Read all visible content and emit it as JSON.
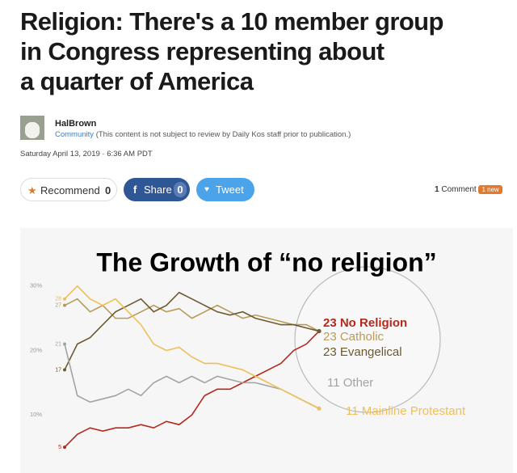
{
  "article": {
    "title_lines": [
      "Religion: There's a 10 member group",
      "in Congress representing about",
      "a quarter of America"
    ],
    "author": "HalBrown",
    "community": "Community",
    "disclaimer": "(This content is not subject to review by Daily Kos staff prior to publication.)",
    "date": "Saturday April 13, 2019 · 6:36 AM PDT",
    "recommend": {
      "label": "Recommend",
      "count": "0"
    },
    "share": {
      "icon": "f",
      "label": "Share",
      "count": "0"
    },
    "tweet": {
      "label": "Tweet"
    },
    "comments": {
      "count": "1",
      "label": "Comment",
      "badge": "1 new"
    }
  },
  "chart_data": {
    "type": "line",
    "title": "The Growth of “no religion”",
    "categories": [
      null,
      null,
      null,
      null,
      null,
      null,
      null,
      null,
      null,
      null,
      null,
      null,
      null,
      null,
      null,
      null,
      null,
      null,
      null,
      null,
      null
    ],
    "ylim": [
      1,
      39
    ],
    "yticks": [
      {
        "value": 10,
        "label": "10%"
      },
      {
        "value": 20,
        "label": "20%"
      },
      {
        "value": 30,
        "label": "30%"
      }
    ],
    "grid": false,
    "series": [
      {
        "name": "No Religion",
        "color": "#b5281c",
        "values": [
          5,
          7,
          8,
          7.5,
          8,
          8,
          8.5,
          8,
          9,
          8.5,
          10,
          13,
          14,
          14,
          15,
          16,
          17,
          18,
          20,
          21,
          23
        ],
        "value_labels": [
          "5",
          null,
          null,
          null,
          null,
          null,
          null,
          null,
          null,
          null,
          null,
          null,
          null,
          null,
          null,
          null,
          null,
          null,
          null,
          null,
          "23 No Religion"
        ]
      },
      {
        "name": "Catholic",
        "color": "#b89b5a",
        "values": [
          27,
          28,
          26,
          27,
          25,
          25,
          26,
          27,
          26,
          26.5,
          25,
          26,
          27,
          26,
          25,
          25.5,
          25,
          24.5,
          24,
          24,
          23
        ],
        "value_labels": [
          "27",
          null,
          null,
          null,
          null,
          null,
          null,
          null,
          null,
          null,
          null,
          null,
          null,
          null,
          null,
          null,
          null,
          null,
          null,
          null,
          "23 Catholic"
        ]
      },
      {
        "name": "Evangelical",
        "color": "#6b5a2e",
        "values": [
          17,
          21,
          22,
          24,
          26,
          27,
          28,
          26,
          27,
          29,
          28,
          27,
          26,
          25.5,
          26,
          25,
          24.5,
          24,
          24,
          23.5,
          23
        ],
        "value_labels": [
          "17",
          null,
          null,
          null,
          null,
          null,
          null,
          null,
          null,
          null,
          null,
          null,
          null,
          null,
          null,
          null,
          null,
          null,
          null,
          null,
          "23 Evangelical"
        ]
      },
      {
        "name": "Other",
        "color": "#a3a3a3",
        "values": [
          21,
          13,
          12,
          12.5,
          13,
          14,
          13,
          15,
          16,
          15,
          16,
          15,
          16,
          15.5,
          15,
          15,
          14.5,
          14,
          13,
          12,
          11
        ],
        "value_labels": [
          "21",
          null,
          null,
          null,
          null,
          null,
          null,
          null,
          null,
          null,
          null,
          null,
          null,
          null,
          null,
          null,
          null,
          null,
          null,
          null,
          "11 Other"
        ]
      },
      {
        "name": "Mainline Protestant",
        "color": "#efbf5a",
        "values": [
          28,
          30,
          28,
          27,
          28,
          26,
          24,
          21,
          20,
          20.5,
          19,
          18,
          18,
          17.5,
          17,
          16,
          15,
          14,
          13,
          12,
          11
        ],
        "value_labels": [
          "28",
          null,
          null,
          null,
          null,
          null,
          null,
          null,
          null,
          null,
          null,
          null,
          null,
          null,
          null,
          null,
          null,
          null,
          null,
          null,
          "11 Mainline Protestant"
        ]
      }
    ]
  }
}
